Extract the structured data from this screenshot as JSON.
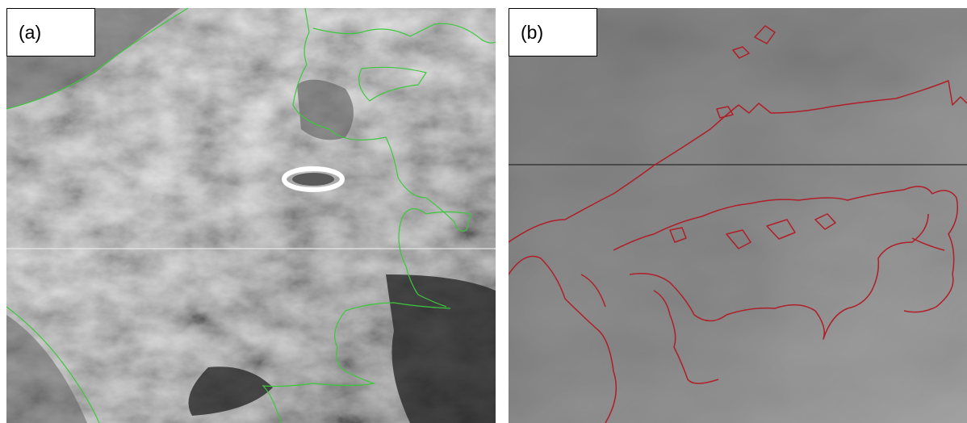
{
  "panels": [
    {
      "label": "(a)",
      "content": "satellite-infrared-image",
      "overlay_color": "#3cc83c"
    },
    {
      "label": "(b)",
      "content": "satellite-image-with-coastline",
      "overlay_color": "#b01e28"
    }
  ]
}
